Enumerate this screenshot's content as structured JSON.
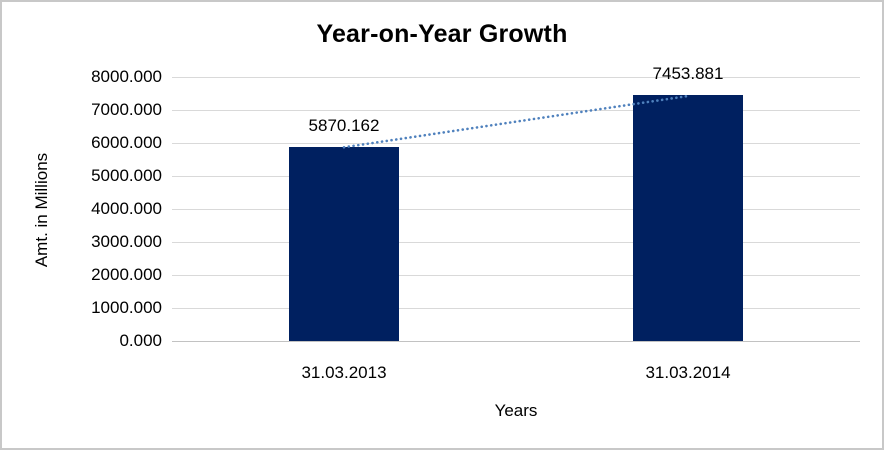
{
  "chart_data": {
    "type": "bar",
    "title": "Year-on-Year Growth",
    "xlabel": "Years",
    "ylabel": "Amt. in Millions",
    "categories": [
      "31.03.2013",
      "31.03.2014"
    ],
    "values": [
      5870.162,
      7453.881
    ],
    "data_labels": [
      "5870.162",
      "7453.881"
    ],
    "ylim": [
      0,
      8000
    ],
    "ytick_step": 1000,
    "ytick_labels": [
      "8000.000",
      "7000.000",
      "6000.000",
      "5000.000",
      "4000.000",
      "3000.000",
      "2000.000",
      "1000.000",
      "0.000"
    ],
    "grid": true,
    "legend": "none",
    "trendline": {
      "style": "dotted",
      "from_category": "31.03.2013",
      "to_category": "31.03.2014"
    },
    "colors": {
      "bar": "#002060",
      "trendline": "#4f81bd",
      "gridline": "#d9d9d9",
      "axis_line": "#c2c2c2",
      "text": "#000000",
      "frame_border": "#c8c8c8",
      "background": "#ffffff"
    }
  }
}
